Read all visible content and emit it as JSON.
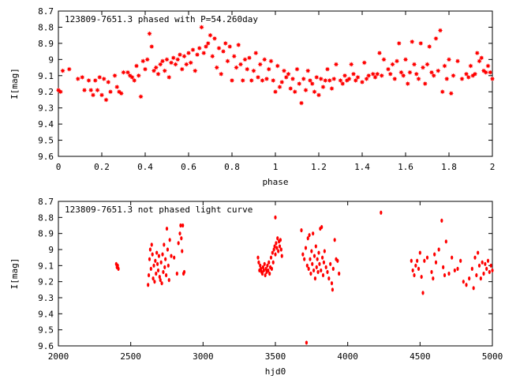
{
  "chart_data": [
    {
      "type": "scatter",
      "title": "123809-7651.3 phased with P=54.260day",
      "xlabel": "phase",
      "ylabel": "I[mag]",
      "xlim": [
        0,
        2
      ],
      "ylim": [
        8.7,
        9.6
      ],
      "y_inverted": true,
      "grid": false,
      "point_color": "#ff0000",
      "xticks": [
        "0",
        "0.2",
        "0.4",
        "0.6",
        "0.8",
        "1",
        "1.2",
        "1.4",
        "1.6",
        "1.8",
        "2"
      ],
      "yticks": [
        "8.7",
        "8.8",
        "8.9",
        "9",
        "9.1",
        "9.2",
        "9.3",
        "9.4",
        "9.5",
        "9.6"
      ],
      "points": [
        [
          0.0,
          9.19
        ],
        [
          0.01,
          9.2
        ],
        [
          0.02,
          9.07
        ],
        [
          0.05,
          9.06
        ],
        [
          0.09,
          9.12
        ],
        [
          0.11,
          9.11
        ],
        [
          0.12,
          9.19
        ],
        [
          0.14,
          9.13
        ],
        [
          0.15,
          9.19
        ],
        [
          0.16,
          9.22
        ],
        [
          0.17,
          9.13
        ],
        [
          0.18,
          9.19
        ],
        [
          0.19,
          9.11
        ],
        [
          0.2,
          9.22
        ],
        [
          0.21,
          9.12
        ],
        [
          0.22,
          9.25
        ],
        [
          0.23,
          9.14
        ],
        [
          0.24,
          9.2
        ],
        [
          0.26,
          9.1
        ],
        [
          0.27,
          9.17
        ],
        [
          0.28,
          9.2
        ],
        [
          0.29,
          9.21
        ],
        [
          0.3,
          9.08
        ],
        [
          0.32,
          9.08
        ],
        [
          0.33,
          9.1
        ],
        [
          0.34,
          9.11
        ],
        [
          0.35,
          9.13
        ],
        [
          0.36,
          9.04
        ],
        [
          0.37,
          9.1
        ],
        [
          0.38,
          9.23
        ],
        [
          0.39,
          9.01
        ],
        [
          0.4,
          9.06
        ],
        [
          0.41,
          9.0
        ],
        [
          0.42,
          8.84
        ],
        [
          0.43,
          8.92
        ],
        [
          0.44,
          9.07
        ],
        [
          0.45,
          9.05
        ],
        [
          0.46,
          9.09
        ],
        [
          0.47,
          9.03
        ],
        [
          0.48,
          9.01
        ],
        [
          0.49,
          9.07
        ],
        [
          0.5,
          9.0
        ],
        [
          0.51,
          9.11
        ],
        [
          0.52,
          9.02
        ],
        [
          0.53,
          8.99
        ],
        [
          0.54,
          9.03
        ],
        [
          0.55,
          9.0
        ],
        [
          0.56,
          8.97
        ],
        [
          0.57,
          9.06
        ],
        [
          0.58,
          8.98
        ],
        [
          0.59,
          9.03
        ],
        [
          0.6,
          8.96
        ],
        [
          0.61,
          9.02
        ],
        [
          0.62,
          8.94
        ],
        [
          0.63,
          9.07
        ],
        [
          0.64,
          8.97
        ],
        [
          0.65,
          8.93
        ],
        [
          0.66,
          8.8
        ],
        [
          0.67,
          8.96
        ],
        [
          0.68,
          8.92
        ],
        [
          0.69,
          8.9
        ],
        [
          0.7,
          8.85
        ],
        [
          0.71,
          8.98
        ],
        [
          0.72,
          8.87
        ],
        [
          0.73,
          9.05
        ],
        [
          0.74,
          8.93
        ],
        [
          0.75,
          9.09
        ],
        [
          0.76,
          8.95
        ],
        [
          0.77,
          8.9
        ],
        [
          0.78,
          9.01
        ],
        [
          0.79,
          8.92
        ],
        [
          0.8,
          9.13
        ],
        [
          0.81,
          8.98
        ],
        [
          0.82,
          9.05
        ],
        [
          0.83,
          8.91
        ],
        [
          0.84,
          9.03
        ],
        [
          0.85,
          9.13
        ],
        [
          0.86,
          9.0
        ],
        [
          0.87,
          9.06
        ],
        [
          0.88,
          8.99
        ],
        [
          0.89,
          9.13
        ],
        [
          0.9,
          9.07
        ],
        [
          0.91,
          8.96
        ],
        [
          0.92,
          9.11
        ],
        [
          0.93,
          9.03
        ],
        [
          0.94,
          9.13
        ],
        [
          0.95,
          9.0
        ],
        [
          0.96,
          9.12
        ],
        [
          0.97,
          9.06
        ],
        [
          0.98,
          9.01
        ],
        [
          0.99,
          9.13
        ],
        [
          1.0,
          9.2
        ],
        [
          1.01,
          9.04
        ],
        [
          1.02,
          9.17
        ],
        [
          1.03,
          9.14
        ],
        [
          1.04,
          9.07
        ],
        [
          1.05,
          9.11
        ],
        [
          1.06,
          9.09
        ],
        [
          1.07,
          9.18
        ],
        [
          1.08,
          9.12
        ],
        [
          1.09,
          9.2
        ],
        [
          1.1,
          9.06
        ],
        [
          1.11,
          9.15
        ],
        [
          1.12,
          9.27
        ],
        [
          1.13,
          9.12
        ],
        [
          1.14,
          9.19
        ],
        [
          1.15,
          9.07
        ],
        [
          1.16,
          9.13
        ],
        [
          1.17,
          9.15
        ],
        [
          1.18,
          9.2
        ],
        [
          1.19,
          9.11
        ],
        [
          1.2,
          9.22
        ],
        [
          1.21,
          9.12
        ],
        [
          1.22,
          9.17
        ],
        [
          1.23,
          9.13
        ],
        [
          1.24,
          9.06
        ],
        [
          1.25,
          9.13
        ],
        [
          1.26,
          9.18
        ],
        [
          1.27,
          9.12
        ],
        [
          1.28,
          9.03
        ],
        [
          1.3,
          9.13
        ],
        [
          1.31,
          9.15
        ],
        [
          1.32,
          9.1
        ],
        [
          1.33,
          9.13
        ],
        [
          1.34,
          9.12
        ],
        [
          1.35,
          9.03
        ],
        [
          1.36,
          9.09
        ],
        [
          1.37,
          9.13
        ],
        [
          1.38,
          9.11
        ],
        [
          1.4,
          9.14
        ],
        [
          1.41,
          9.02
        ],
        [
          1.42,
          9.12
        ],
        [
          1.43,
          9.1
        ],
        [
          1.45,
          9.09
        ],
        [
          1.46,
          9.11
        ],
        [
          1.47,
          9.09
        ],
        [
          1.48,
          8.96
        ],
        [
          1.49,
          9.1
        ],
        [
          1.5,
          9.0
        ],
        [
          1.52,
          9.06
        ],
        [
          1.53,
          9.09
        ],
        [
          1.54,
          9.03
        ],
        [
          1.55,
          9.12
        ],
        [
          1.56,
          9.01
        ],
        [
          1.57,
          8.9
        ],
        [
          1.58,
          9.08
        ],
        [
          1.59,
          9.1
        ],
        [
          1.6,
          9.0
        ],
        [
          1.61,
          9.15
        ],
        [
          1.62,
          9.08
        ],
        [
          1.63,
          8.89
        ],
        [
          1.64,
          9.03
        ],
        [
          1.65,
          9.09
        ],
        [
          1.66,
          9.12
        ],
        [
          1.67,
          8.9
        ],
        [
          1.68,
          9.05
        ],
        [
          1.69,
          9.15
        ],
        [
          1.7,
          9.03
        ],
        [
          1.71,
          8.92
        ],
        [
          1.72,
          9.08
        ],
        [
          1.73,
          9.1
        ],
        [
          1.74,
          8.87
        ],
        [
          1.75,
          9.07
        ],
        [
          1.76,
          8.82
        ],
        [
          1.77,
          9.2
        ],
        [
          1.78,
          9.04
        ],
        [
          1.79,
          9.12
        ],
        [
          1.8,
          9.0
        ],
        [
          1.81,
          9.21
        ],
        [
          1.82,
          9.1
        ],
        [
          1.84,
          9.01
        ],
        [
          1.86,
          9.12
        ],
        [
          1.88,
          9.09
        ],
        [
          1.89,
          9.11
        ],
        [
          1.9,
          9.04
        ],
        [
          1.91,
          9.1
        ],
        [
          1.92,
          9.09
        ],
        [
          1.93,
          8.96
        ],
        [
          1.94,
          9.01
        ],
        [
          1.95,
          8.99
        ],
        [
          1.96,
          9.07
        ],
        [
          1.97,
          9.08
        ],
        [
          1.98,
          9.04
        ],
        [
          1.99,
          9.08
        ],
        [
          2.0,
          9.12
        ]
      ]
    },
    {
      "type": "scatter",
      "title": "123809-7651.3 not phased light curve",
      "xlabel": "hjd0",
      "ylabel": "I[mag]",
      "xlim": [
        2000,
        5000
      ],
      "ylim": [
        8.7,
        9.6
      ],
      "y_inverted": true,
      "grid": false,
      "point_color": "#ff0000",
      "xticks": [
        "2000",
        "2500",
        "3000",
        "3500",
        "4000",
        "4500",
        "5000"
      ],
      "yticks": [
        "8.7",
        "8.8",
        "8.9",
        "9",
        "9.1",
        "9.2",
        "9.3",
        "9.4",
        "9.5",
        "9.6"
      ],
      "points": [
        [
          2400,
          9.09
        ],
        [
          2405,
          9.11
        ],
        [
          2410,
          9.1
        ],
        [
          2415,
          9.12
        ],
        [
          2620,
          9.22
        ],
        [
          2625,
          9.16
        ],
        [
          2630,
          9.06
        ],
        [
          2635,
          9.0
        ],
        [
          2640,
          9.12
        ],
        [
          2645,
          8.97
        ],
        [
          2650,
          9.03
        ],
        [
          2655,
          9.18
        ],
        [
          2660,
          9.1
        ],
        [
          2665,
          9.2
        ],
        [
          2670,
          9.07
        ],
        [
          2675,
          9.15
        ],
        [
          2680,
          9.02
        ],
        [
          2685,
          9.09
        ],
        [
          2690,
          9.13
        ],
        [
          2695,
          9.04
        ],
        [
          2700,
          9.17
        ],
        [
          2705,
          9.19
        ],
        [
          2710,
          9.08
        ],
        [
          2715,
          9.21
        ],
        [
          2720,
          9.03
        ],
        [
          2725,
          9.14
        ],
        [
          2730,
          8.97
        ],
        [
          2735,
          9.11
        ],
        [
          2740,
          9.06
        ],
        [
          2745,
          9.16
        ],
        [
          2750,
          8.87
        ],
        [
          2755,
          9.0
        ],
        [
          2760,
          9.1
        ],
        [
          2765,
          9.19
        ],
        [
          2770,
          8.94
        ],
        [
          2780,
          9.04
        ],
        [
          2800,
          9.05
        ],
        [
          2820,
          9.15
        ],
        [
          2830,
          8.96
        ],
        [
          2840,
          8.9
        ],
        [
          2845,
          8.85
        ],
        [
          2850,
          8.93
        ],
        [
          2855,
          9.01
        ],
        [
          2860,
          8.85
        ],
        [
          2865,
          9.15
        ],
        [
          2870,
          9.14
        ],
        [
          3380,
          9.05
        ],
        [
          3385,
          9.08
        ],
        [
          3390,
          9.13
        ],
        [
          3395,
          9.1
        ],
        [
          3400,
          9.12
        ],
        [
          3405,
          9.14
        ],
        [
          3410,
          9.15
        ],
        [
          3415,
          9.11
        ],
        [
          3420,
          9.13
        ],
        [
          3425,
          9.09
        ],
        [
          3430,
          9.16
        ],
        [
          3435,
          9.12
        ],
        [
          3440,
          9.14
        ],
        [
          3445,
          9.1
        ],
        [
          3450,
          9.13
        ],
        [
          3455,
          9.08
        ],
        [
          3460,
          9.15
        ],
        [
          3465,
          9.11
        ],
        [
          3470,
          9.05
        ],
        [
          3475,
          9.12
        ],
        [
          3480,
          9.02
        ],
        [
          3485,
          9.08
        ],
        [
          3490,
          9.0
        ],
        [
          3495,
          8.98
        ],
        [
          3500,
          9.03
        ],
        [
          3505,
          8.96
        ],
        [
          3510,
          8.99
        ],
        [
          3515,
          8.93
        ],
        [
          3520,
          9.01
        ],
        [
          3525,
          8.95
        ],
        [
          3530,
          8.98
        ],
        [
          3535,
          8.94
        ],
        [
          3540,
          9.0
        ],
        [
          3545,
          9.04
        ],
        [
          3500,
          8.8
        ],
        [
          3680,
          8.88
        ],
        [
          3690,
          9.03
        ],
        [
          3700,
          9.06
        ],
        [
          3710,
          8.99
        ],
        [
          3715,
          9.58
        ],
        [
          3720,
          9.1
        ],
        [
          3725,
          8.93
        ],
        [
          3730,
          9.12
        ],
        [
          3735,
          8.91
        ],
        [
          3740,
          9.06
        ],
        [
          3745,
          9.15
        ],
        [
          3750,
          9.01
        ],
        [
          3755,
          9.09
        ],
        [
          3760,
          8.9
        ],
        [
          3765,
          9.13
        ],
        [
          3770,
          9.04
        ],
        [
          3775,
          9.18
        ],
        [
          3780,
          8.98
        ],
        [
          3785,
          9.11
        ],
        [
          3790,
          9.06
        ],
        [
          3795,
          9.14
        ],
        [
          3800,
          9.02
        ],
        [
          3805,
          9.09
        ],
        [
          3810,
          8.87
        ],
        [
          3815,
          9.13
        ],
        [
          3820,
          8.86
        ],
        [
          3825,
          9.05
        ],
        [
          3830,
          9.16
        ],
        [
          3835,
          9.08
        ],
        [
          3840,
          9.01
        ],
        [
          3850,
          9.11
        ],
        [
          3860,
          9.14
        ],
        [
          3870,
          9.18
        ],
        [
          3880,
          9.09
        ],
        [
          3890,
          9.21
        ],
        [
          3895,
          9.25
        ],
        [
          3900,
          9.12
        ],
        [
          3910,
          8.94
        ],
        [
          3920,
          9.06
        ],
        [
          3930,
          9.07
        ],
        [
          3940,
          9.15
        ],
        [
          4230,
          8.77
        ],
        [
          4440,
          9.07
        ],
        [
          4450,
          9.13
        ],
        [
          4460,
          9.16
        ],
        [
          4470,
          9.1
        ],
        [
          4480,
          9.07
        ],
        [
          4490,
          9.12
        ],
        [
          4500,
          9.02
        ],
        [
          4510,
          9.17
        ],
        [
          4520,
          9.27
        ],
        [
          4530,
          9.07
        ],
        [
          4550,
          9.05
        ],
        [
          4580,
          9.14
        ],
        [
          4590,
          9.18
        ],
        [
          4600,
          9.03
        ],
        [
          4610,
          9.08
        ],
        [
          4630,
          9.0
        ],
        [
          4650,
          8.82
        ],
        [
          4660,
          9.11
        ],
        [
          4670,
          9.16
        ],
        [
          4680,
          8.95
        ],
        [
          4700,
          9.15
        ],
        [
          4720,
          9.05
        ],
        [
          4740,
          9.13
        ],
        [
          4760,
          9.12
        ],
        [
          4780,
          9.07
        ],
        [
          4800,
          9.2
        ],
        [
          4820,
          9.22
        ],
        [
          4840,
          9.18
        ],
        [
          4860,
          9.12
        ],
        [
          4870,
          9.24
        ],
        [
          4880,
          9.05
        ],
        [
          4890,
          9.16
        ],
        [
          4900,
          9.02
        ],
        [
          4910,
          9.1
        ],
        [
          4920,
          9.18
        ],
        [
          4930,
          9.08
        ],
        [
          4940,
          9.15
        ],
        [
          4950,
          9.09
        ],
        [
          4960,
          9.12
        ],
        [
          4970,
          9.07
        ],
        [
          4980,
          9.14
        ],
        [
          4990,
          9.1
        ],
        [
          5000,
          9.13
        ]
      ]
    }
  ]
}
